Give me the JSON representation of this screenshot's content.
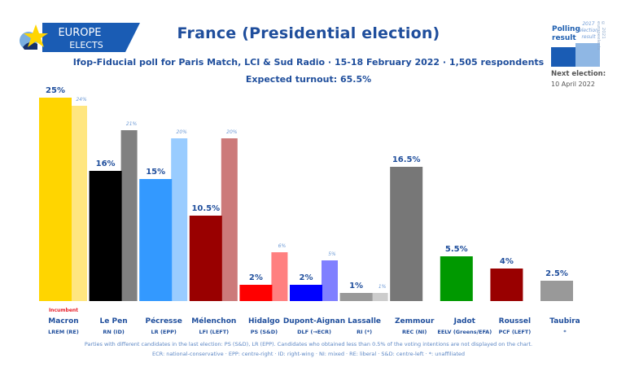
{
  "header": {
    "logo_line1": "EUROPE",
    "logo_line2": "ELECTS",
    "title": "France (Presidential election)",
    "subtitle": "Ifop-Fiducial poll for Paris Match, LCI & Sud Radio · 15-18 February 2022 · 1,505 respondents",
    "turnout": "Expected turnout: 65.5%"
  },
  "legend": {
    "polling_label_line1": "Polling",
    "polling_label_line2": "result",
    "previous_label_line1": "2017",
    "previous_label_line2": "election",
    "previous_label_line3": "result",
    "copyright": "© 2021 europeelects",
    "next_election_label": "Next election:",
    "next_election_date": "10 April 2022"
  },
  "chart_data": {
    "type": "bar",
    "title": "France (Presidential election)",
    "xlabel": "",
    "ylabel": "",
    "ylim": [
      0,
      26
    ],
    "grid": false,
    "legend_position": "top-right",
    "categories": [
      "Macron",
      "Le Pen",
      "Pécresse",
      "Mélenchon",
      "Hidalgo",
      "Dupont-Aignan",
      "Lassalle",
      "Zemmour",
      "Jadot",
      "Roussel",
      "Taubira"
    ],
    "parties": [
      "LREM (RE)",
      "RN (ID)",
      "LR (EPP)",
      "LFI (LEFT)",
      "PS (S&D)",
      "DLF (→ECR)",
      "RI (*)",
      "REC (NI)",
      "EELV (Greens/EFA)",
      "PCF (LEFT)",
      "*"
    ],
    "annotations": [
      {
        "category": "Macron",
        "text": "Incumbent",
        "color": "#e8202a"
      }
    ],
    "series": [
      {
        "name": "Polling result",
        "values": [
          25,
          16,
          15,
          10.5,
          2,
          2,
          1,
          16.5,
          5.5,
          4,
          2.5
        ],
        "labels": [
          "25%",
          "16%",
          "15%",
          "10.5%",
          "2%",
          "2%",
          "1%",
          "16.5%",
          "5.5%",
          "4%",
          "2.5%"
        ],
        "colors": [
          "#ffd500",
          "#000000",
          "#3399ff",
          "#990000",
          "#ff0000",
          "#0000ff",
          "#999999",
          "#777777",
          "#009900",
          "#990000",
          "#999999"
        ]
      },
      {
        "name": "2017 election result",
        "values": [
          24,
          21,
          20,
          20,
          6,
          5,
          1,
          null,
          null,
          null,
          null
        ],
        "labels": [
          "24%",
          "21%",
          "20%",
          "20%",
          "6%",
          "5%",
          "1%",
          null,
          null,
          null,
          null
        ],
        "colors": [
          "#ffe680",
          "#808080",
          "#99ccff",
          "#cc7a7a",
          "#ff8080",
          "#8080ff",
          "#cccccc",
          null,
          null,
          null,
          null
        ]
      }
    ]
  },
  "footnotes": {
    "line1": "Parties with different candidates in the last election: PS (S&D), LR (EPP). Candidates who obtained less than 0.5% of the voting intentions are not displayed on the chart.",
    "line2": "ECR: national-conservative · EPP: centre-right · ID: right-wing · NI: mixed · RE: liberal · S&D: centre-left · *: unaffiliated"
  }
}
